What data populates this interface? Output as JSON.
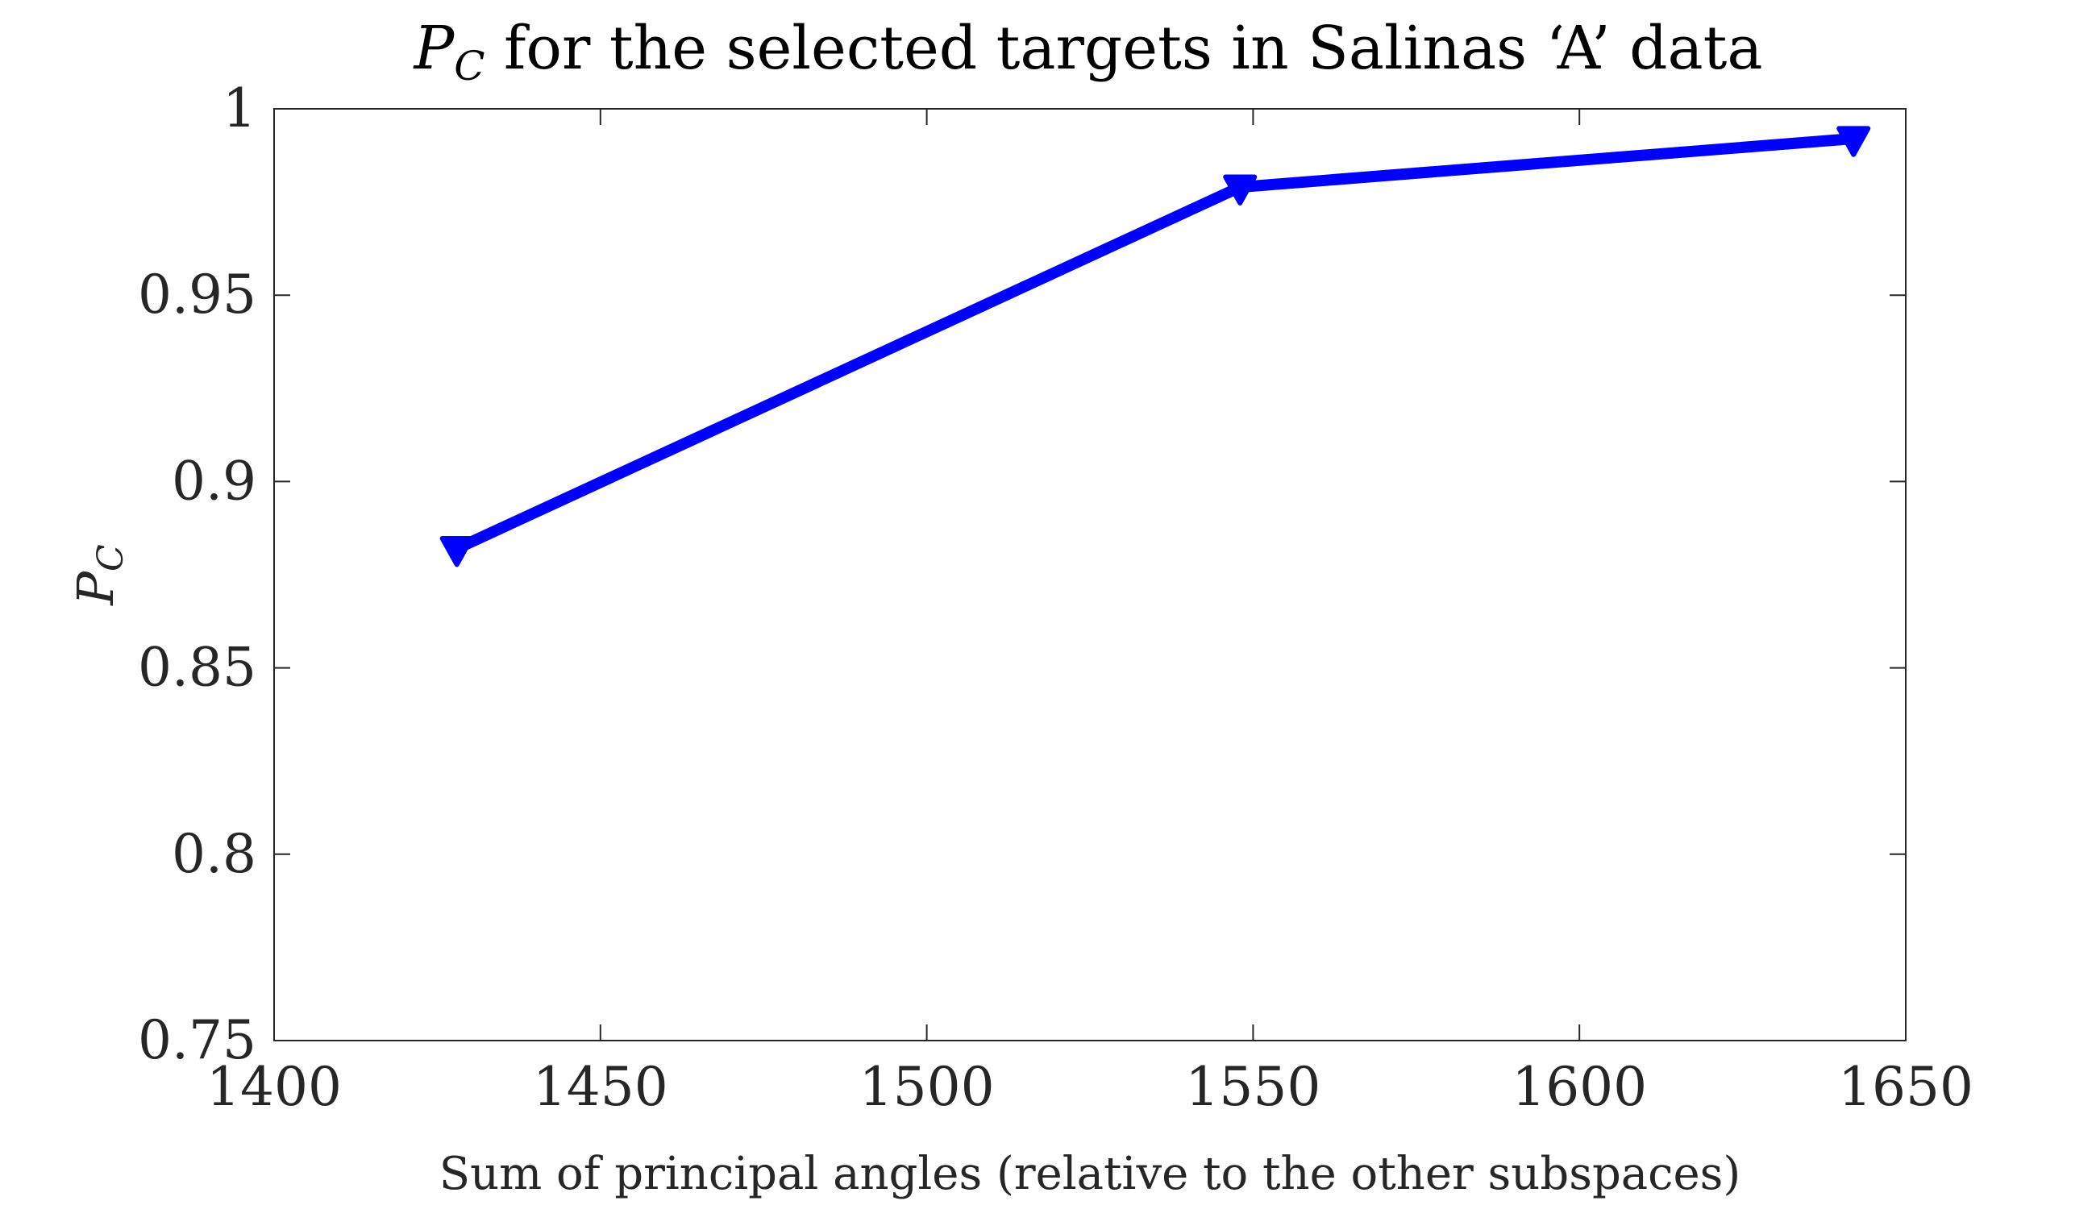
{
  "chart_data": {
    "type": "line",
    "title_symbol": "P",
    "title_symbol_sub": "C",
    "title_rest": " for the selected targets in Salinas ‘A’ data",
    "xlabel": "Sum of principal angles (relative to the other subspaces)",
    "ylabel_symbol": "P",
    "ylabel_symbol_sub": "C",
    "xlim": [
      1400,
      1650
    ],
    "ylim": [
      0.75,
      1.0
    ],
    "xticks": [
      1400,
      1450,
      1500,
      1550,
      1600,
      1650
    ],
    "yticks": [
      0.75,
      0.8,
      0.85,
      0.9,
      0.95,
      1.0
    ],
    "xtick_labels": [
      "1400",
      "1450",
      "1500",
      "1550",
      "1600",
      "1650"
    ],
    "ytick_labels": [
      "0.75",
      "0.8",
      "0.85",
      "0.9",
      "0.95",
      "1"
    ],
    "grid": false,
    "series": [
      {
        "color": "#0000ff",
        "marker": "triangle-down",
        "x": [
          1428,
          1548,
          1642
        ],
        "y": [
          0.882,
          0.979,
          0.992
        ]
      }
    ]
  }
}
